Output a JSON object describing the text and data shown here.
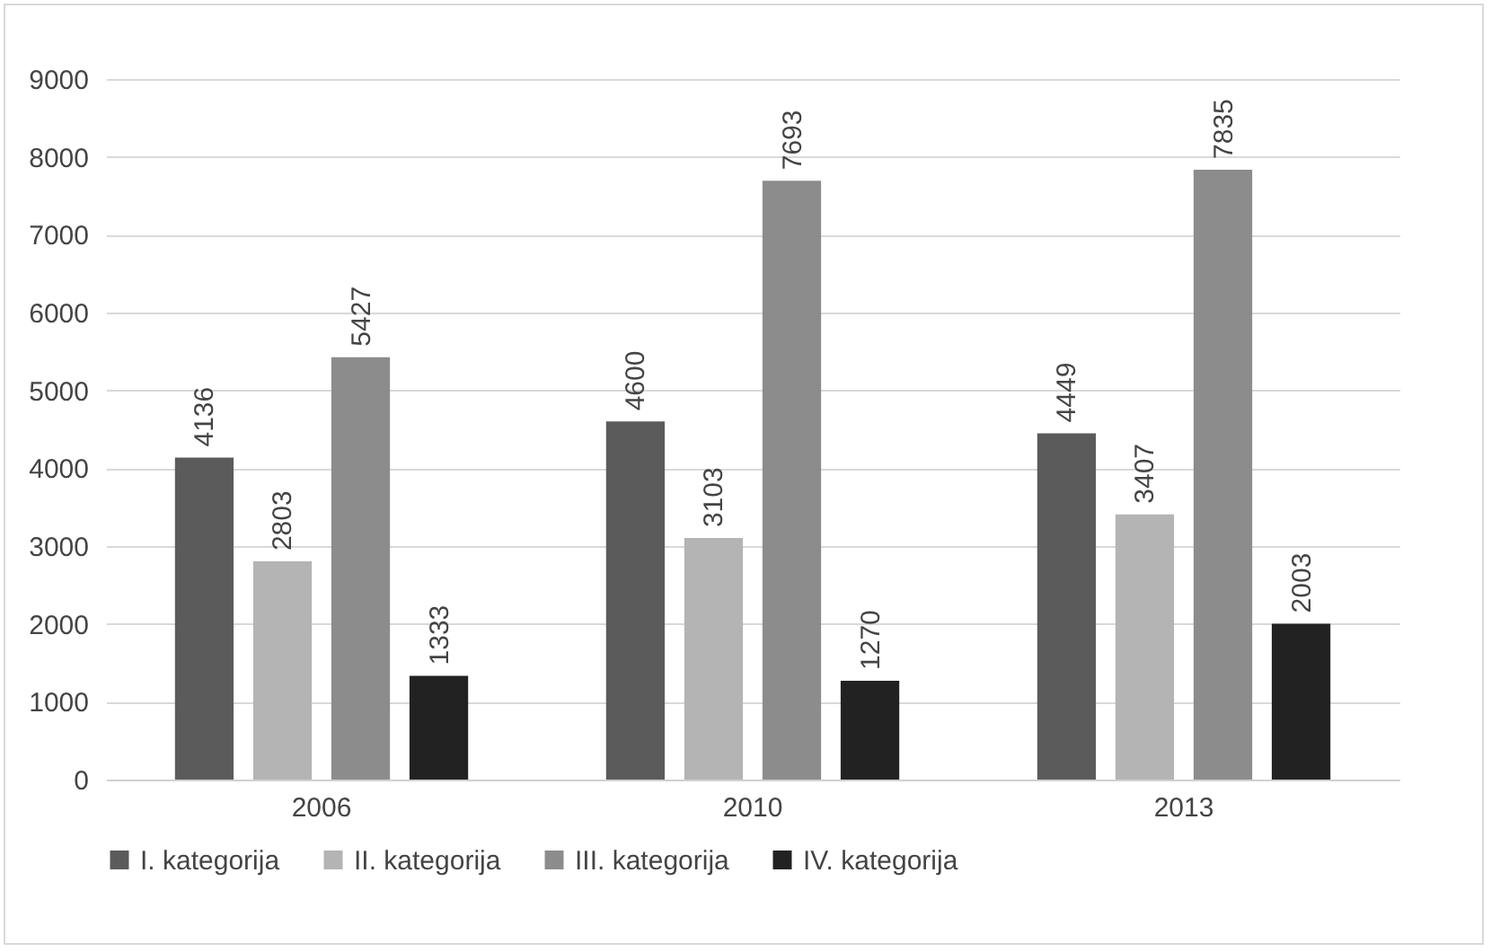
{
  "chart_data": {
    "type": "bar",
    "categories": [
      "2006",
      "2010",
      "2013"
    ],
    "series": [
      {
        "name": "I. kategorija",
        "color": "#5b5b5b",
        "values": [
          4136,
          4600,
          4449
        ]
      },
      {
        "name": "II. kategorija",
        "color": "#b4b4b4",
        "values": [
          2803,
          3103,
          3407
        ]
      },
      {
        "name": "III. kategorija",
        "color": "#8c8c8c",
        "values": [
          5427,
          7693,
          7835
        ]
      },
      {
        "name": "IV. kategorija",
        "color": "#222222",
        "values": [
          1333,
          1270,
          2003
        ]
      }
    ],
    "ylim": [
      0,
      9000
    ],
    "yticks": [
      0,
      1000,
      2000,
      3000,
      4000,
      5000,
      6000,
      7000,
      8000,
      9000
    ],
    "grid": "y",
    "legend": "bottom",
    "data_labels": true
  }
}
